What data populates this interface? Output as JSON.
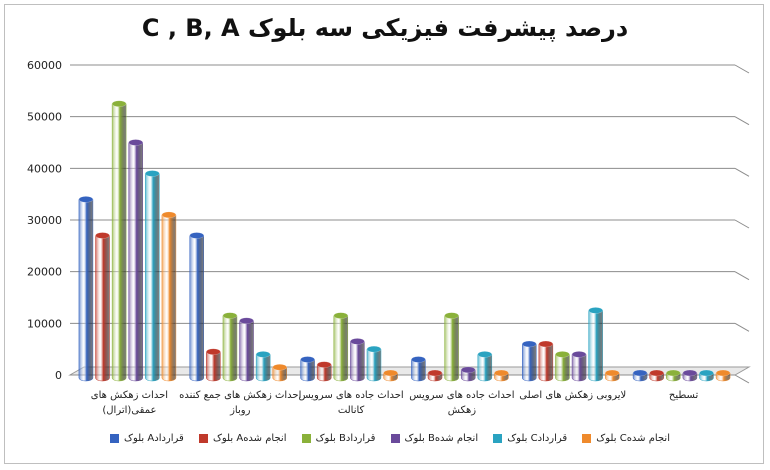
{
  "chart_data": {
    "type": "bar",
    "title": "درصد پیشرفت فیزیکی سه بلوک  C , B, A",
    "xlabel": "",
    "ylabel": "",
    "ylim": [
      0,
      60000
    ],
    "yticks": [
      "0",
      "10000",
      "20000",
      "30000",
      "40000",
      "50000",
      "60000"
    ],
    "categories": [
      [
        "احداث زهکش های",
        "عمقی(اترال)"
      ],
      [
        "احداث زهکش های جمع کننده",
        "روباز"
      ],
      [
        "احداث جاده های سرویس",
        "کانالت"
      ],
      [
        "احداث جاده های سرویس",
        "زهکش"
      ],
      [
        "لایروبی زهکش های اصلی"
      ],
      [
        "تسطیح"
      ]
    ],
    "series": [
      {
        "name": "بلوک Aقرارداد",
        "color": "#3563c0",
        "values": [
          34000,
          27000,
          3000,
          3000,
          6000,
          0
        ]
      },
      {
        "name": "بلوک Aانجام شده",
        "color": "#c0392b",
        "values": [
          27000,
          4500,
          2000,
          0,
          6000,
          0
        ]
      },
      {
        "name": "بلوک Bقرارداد",
        "color": "#8ab13a",
        "values": [
          52500,
          11500,
          11500,
          11500,
          4000,
          0
        ]
      },
      {
        "name": "بلوک Bانجام شده",
        "color": "#6a4a9b",
        "values": [
          45000,
          10500,
          6500,
          1000,
          4000,
          0
        ]
      },
      {
        "name": "بلوک Cقرارداد",
        "color": "#2aa3c1",
        "values": [
          39000,
          4000,
          5000,
          4000,
          12500,
          0
        ]
      },
      {
        "name": "بلوک Cانجام شده",
        "color": "#ef8a2c",
        "values": [
          31000,
          1500,
          0,
          0,
          0,
          0
        ]
      }
    ],
    "grid": true,
    "legend": "bottom"
  }
}
